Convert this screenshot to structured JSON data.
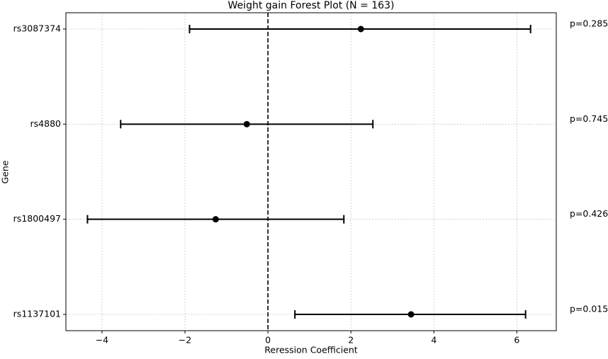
{
  "chart_data": {
    "type": "forest",
    "title": "Weight gain Forest Plot (N = 163)",
    "x_label": "Reression Coefficient",
    "y_label": "Gene",
    "categories": [
      "rs3087374",
      "rs4880",
      "rs1800497",
      "rs1137101"
    ],
    "values": [
      2.24,
      -0.51,
      -1.26,
      3.45
    ],
    "lower": [
      -1.89,
      -3.55,
      -4.35,
      0.65
    ],
    "upper": [
      6.33,
      2.53,
      1.83,
      6.21
    ],
    "annotations": [
      "p=0.285",
      "p=0.745",
      "p=0.426",
      "p=0.015"
    ],
    "color": "#000000",
    "reference_line": 0,
    "xlim": [
      -4.87,
      6.95
    ],
    "xticks": [
      {
        "value": -4,
        "label": "−4"
      },
      {
        "value": -2,
        "label": "−2"
      },
      0,
      2,
      4,
      6
    ],
    "grid": true
  }
}
